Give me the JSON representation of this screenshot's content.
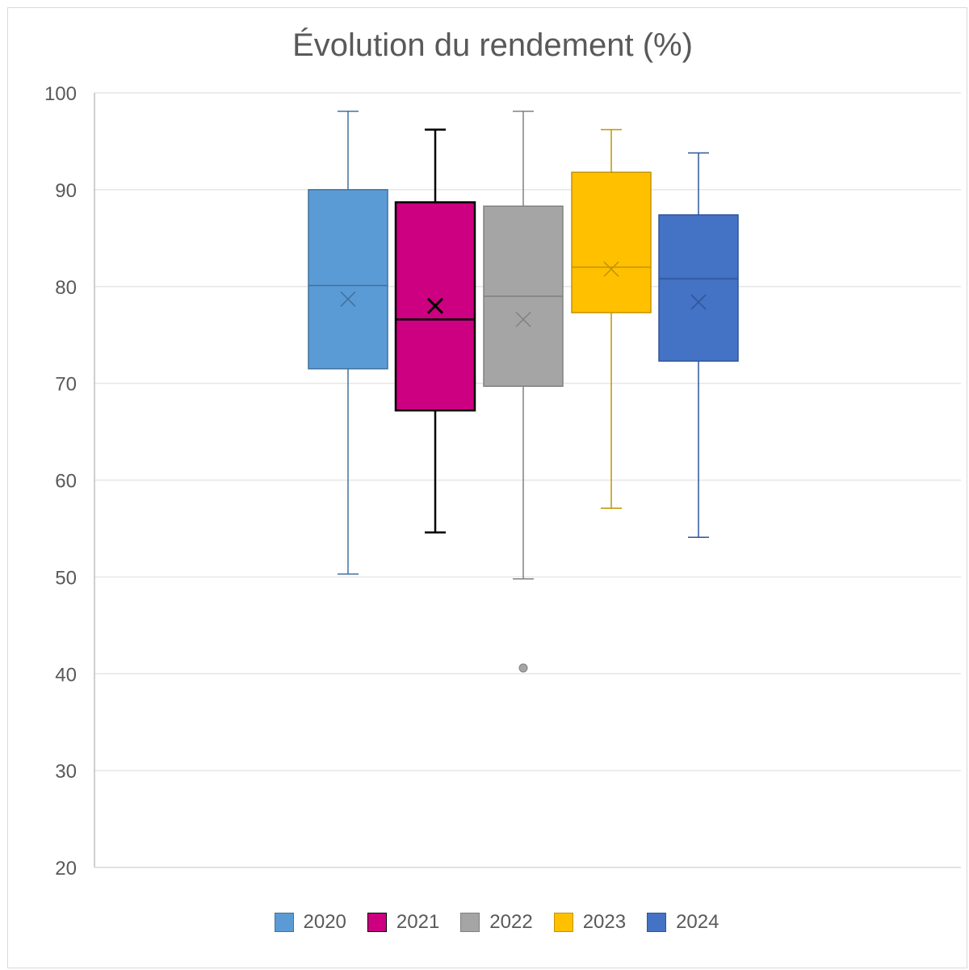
{
  "chart_data": {
    "type": "boxplot",
    "title": "Évolution du rendement (%)",
    "xlabel": "",
    "ylabel": "",
    "ylim": [
      20,
      100
    ],
    "yticks": [
      20,
      30,
      40,
      50,
      60,
      70,
      80,
      90,
      100
    ],
    "grid": true,
    "legend_position": "bottom",
    "series": [
      {
        "name": "2020",
        "color": "#5b9bd5",
        "stroke": "#41719c",
        "min": 50.3,
        "q1": 71.5,
        "median": 80.1,
        "q3": 90.0,
        "max": 98.1,
        "mean": 78.7,
        "outliers": []
      },
      {
        "name": "2021",
        "color": "#cc0080",
        "stroke": "#000000",
        "min": 54.6,
        "q1": 67.2,
        "median": 76.6,
        "q3": 88.7,
        "max": 96.2,
        "mean": 78.0,
        "outliers": []
      },
      {
        "name": "2022",
        "color": "#a5a5a5",
        "stroke": "#808080",
        "min": 49.8,
        "q1": 69.7,
        "median": 79.0,
        "q3": 88.3,
        "max": 98.1,
        "mean": 76.6,
        "outliers": [
          40.6
        ]
      },
      {
        "name": "2023",
        "color": "#ffc000",
        "stroke": "#c49400",
        "min": 57.1,
        "q1": 77.3,
        "median": 82.0,
        "q3": 91.8,
        "max": 96.2,
        "mean": 81.8,
        "outliers": []
      },
      {
        "name": "2024",
        "color": "#4472c4",
        "stroke": "#2f5597",
        "min": 54.1,
        "q1": 72.3,
        "median": 80.8,
        "q3": 87.4,
        "max": 93.8,
        "mean": 78.4,
        "outliers": []
      }
    ]
  }
}
